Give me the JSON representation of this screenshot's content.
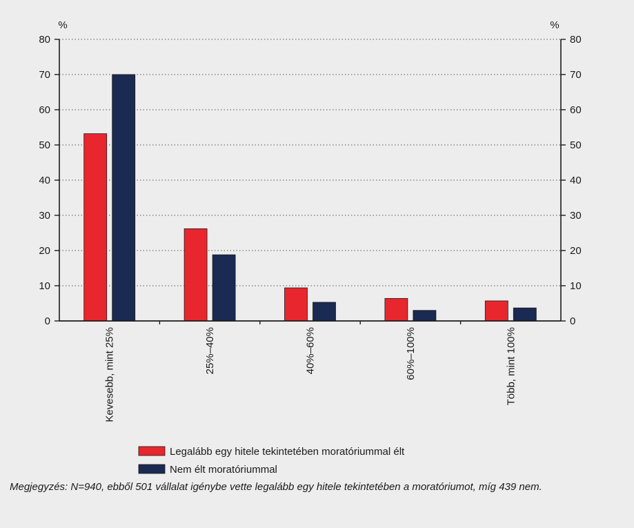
{
  "chart_data": {
    "type": "bar",
    "categories": [
      "Kevesebb, mint 25%",
      "25%–40%",
      "40%–60%",
      "60%–100%",
      "Több, mint 100%"
    ],
    "series": [
      {
        "name": "Legalább egy hitele tekintetében moratóriummal élt",
        "color": "#e8262d",
        "values": [
          53.2,
          26.2,
          9.4,
          6.4,
          5.7
        ]
      },
      {
        "name": "Nem élt moratóriummal",
        "color": "#1b2a52",
        "values": [
          70.0,
          18.8,
          5.3,
          3.0,
          3.7
        ]
      }
    ],
    "ylim": [
      0,
      80
    ],
    "yticks": [
      0,
      10,
      20,
      30,
      40,
      50,
      60,
      70,
      80
    ],
    "y_unit_left": "%",
    "y_unit_right": "%",
    "grid": "horizontal dotted",
    "legend_position": "bottom-center"
  },
  "note": "Megjegyzés: N=940, ebből 501 vállalat igénybe vette legalább egy hitele tekintetében a moratóriumot, míg 439 nem."
}
